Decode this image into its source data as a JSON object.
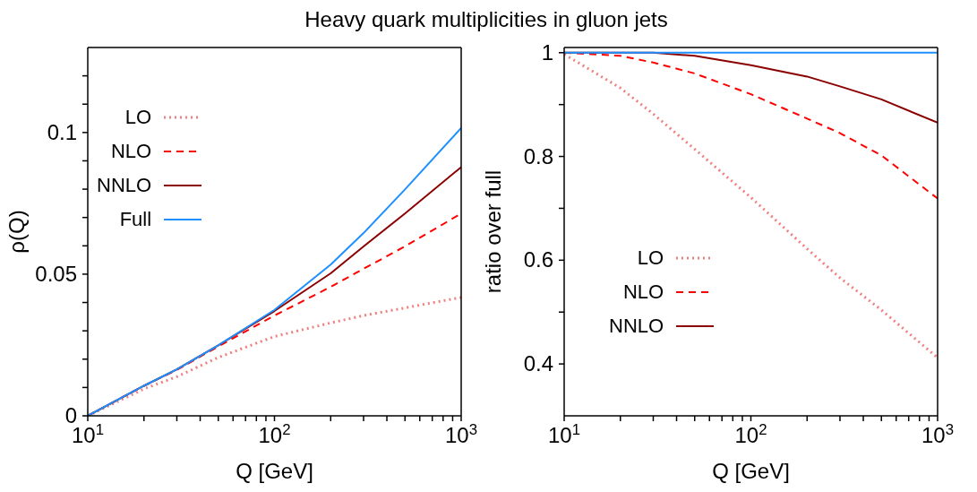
{
  "chart_data": [
    {
      "type": "line",
      "title": "Heavy quark multiplicities in gluon jets",
      "xlabel": "Q [GeV]",
      "ylabel": "ρ(Q)",
      "log": "x",
      "marker": "none",
      "legend": "top left",
      "x": [
        10,
        20,
        30,
        50,
        100,
        200,
        300,
        500,
        1000
      ],
      "xlim": [
        10,
        1000
      ],
      "xticks": [
        {
          "value": 10,
          "label": "10$^{1}$"
        },
        {
          "value": 20,
          "label": null
        },
        {
          "value": 30,
          "label": null
        },
        {
          "value": 40,
          "label": null
        },
        {
          "value": 50,
          "label": null
        },
        {
          "value": 60,
          "label": null
        },
        {
          "value": 70,
          "label": null
        },
        {
          "value": 80,
          "label": null
        },
        {
          "value": 90,
          "label": null
        },
        {
          "value": 100,
          "label": "10$^{2}$"
        },
        {
          "value": 200,
          "label": null
        },
        {
          "value": 300,
          "label": null
        },
        {
          "value": 400,
          "label": null
        },
        {
          "value": 500,
          "label": null
        },
        {
          "value": 600,
          "label": null
        },
        {
          "value": 700,
          "label": null
        },
        {
          "value": 800,
          "label": null
        },
        {
          "value": 900,
          "label": null
        },
        {
          "value": 1000,
          "label": "10$^{3}$"
        }
      ],
      "ylim": [
        0,
        0.13
      ],
      "yticks": [
        0,
        {
          "value": 0.01,
          "label": null
        },
        {
          "value": 0.02,
          "label": null
        },
        {
          "value": 0.03,
          "label": null
        },
        {
          "value": 0.04,
          "label": null
        },
        0.05,
        {
          "value": 0.06,
          "label": null
        },
        {
          "value": 0.07,
          "label": null
        },
        {
          "value": 0.08,
          "label": null
        },
        {
          "value": 0.09,
          "label": null
        },
        0.1,
        {
          "value": 0.11,
          "label": null
        },
        {
          "value": 0.12,
          "label": null
        }
      ],
      "series": [
        {
          "name": "LO",
          "color": "#f08080",
          "line_style": "dotted",
          "values": [
            0,
            0.0095,
            0.0138,
            0.0206,
            0.028,
            0.0328,
            0.0354,
            0.0381,
            0.0418
          ]
        },
        {
          "name": "NLO",
          "color": "#ff0000",
          "line_style": "dashed",
          "values": [
            0,
            0.0106,
            0.0162,
            0.0245,
            0.0354,
            0.0455,
            0.0519,
            0.0598,
            0.0714
          ]
        },
        {
          "name": "NNLO",
          "color": "#8b0000",
          "line_style": "solid",
          "values": [
            0,
            0.0106,
            0.0164,
            0.0249,
            0.037,
            0.0503,
            0.0598,
            0.0714,
            0.0878
          ]
        },
        {
          "name": "Full",
          "color": "#1e90ff",
          "line_style": "solid",
          "values": [
            0,
            0.0106,
            0.0164,
            0.0249,
            0.0374,
            0.0534,
            0.0645,
            0.0799,
            0.1016
          ]
        }
      ]
    },
    {
      "type": "line",
      "xlabel": "Q [GeV]",
      "ylabel": "ratio over full",
      "log": "x",
      "marker": "none",
      "legend": "bottom left",
      "x": [
        10,
        20,
        30,
        50,
        100,
        200,
        300,
        500,
        1000
      ],
      "xlim": [
        10,
        1000
      ],
      "xticks": [
        {
          "value": 10,
          "label": "10$^{1}$"
        },
        {
          "value": 20,
          "label": null
        },
        {
          "value": 30,
          "label": null
        },
        {
          "value": 40,
          "label": null
        },
        {
          "value": 50,
          "label": null
        },
        {
          "value": 60,
          "label": null
        },
        {
          "value": 70,
          "label": null
        },
        {
          "value": 80,
          "label": null
        },
        {
          "value": 90,
          "label": null
        },
        {
          "value": 100,
          "label": "10$^{2}$"
        },
        {
          "value": 200,
          "label": null
        },
        {
          "value": 300,
          "label": null
        },
        {
          "value": 400,
          "label": null
        },
        {
          "value": 500,
          "label": null
        },
        {
          "value": 600,
          "label": null
        },
        {
          "value": 700,
          "label": null
        },
        {
          "value": 800,
          "label": null
        },
        {
          "value": 900,
          "label": null
        },
        {
          "value": 1000,
          "label": "10$^{3}$"
        }
      ],
      "ylim": [
        0.3,
        1.01
      ],
      "yticks": [
        0.4,
        {
          "value": 0.5,
          "label": null
        },
        0.6,
        {
          "value": 0.7,
          "label": null
        },
        0.8,
        {
          "value": 0.9,
          "label": null
        },
        1
      ],
      "series": [
        {
          "name": "LO",
          "color": "#f08080",
          "line_style": "dotted",
          "values": [
            0.997,
            0.932,
            0.882,
            0.814,
            0.721,
            0.622,
            0.566,
            0.504,
            0.412
          ]
        },
        {
          "name": "NLO",
          "color": "#ff0000",
          "line_style": "dashed",
          "values": [
            1,
            0.994,
            0.981,
            0.96,
            0.92,
            0.873,
            0.845,
            0.802,
            0.719
          ]
        },
        {
          "name": "NNLO",
          "color": "#8b0000",
          "line_style": "solid",
          "values": [
            1,
            1,
            1,
            0.994,
            0.976,
            0.954,
            0.935,
            0.91,
            0.865
          ]
        },
        {
          "color": "#1e90ff",
          "line_style": "solid",
          "values": [
            1,
            1,
            1,
            1,
            1,
            1,
            1,
            1,
            1
          ]
        }
      ]
    }
  ]
}
